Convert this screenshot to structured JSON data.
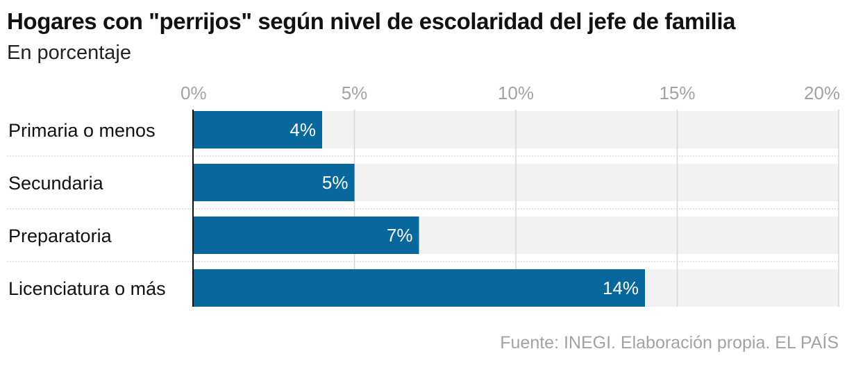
{
  "title": "Hogares con \"perrijos\" según nivel de escolaridad del jefe de familia",
  "subtitle": "En porcentaje",
  "source": "Fuente: INEGI. Elaboración propia. EL PAÍS",
  "colors": {
    "bar": "#08679c",
    "track": "#f2f2f2",
    "grid": "#d6d6d6",
    "tick_text": "#a3a3a3",
    "bar_label": "#ffffff",
    "category_text": "#111111",
    "separator": "#cfcfcf"
  },
  "chart_data": {
    "type": "bar",
    "orientation": "horizontal",
    "categories": [
      "Primaria o menos",
      "Secundaria",
      "Preparatoria",
      "Licenciatura o más"
    ],
    "values": [
      4,
      5,
      7,
      14
    ],
    "value_labels": [
      "4%",
      "5%",
      "7%",
      "14%"
    ],
    "xlim": [
      0,
      20
    ],
    "x_ticks": [
      0,
      5,
      10,
      15,
      20
    ],
    "x_tick_labels": [
      "0%",
      "5%",
      "10%",
      "15%",
      "20%"
    ],
    "x_axis_position": "top",
    "grid": true
  }
}
